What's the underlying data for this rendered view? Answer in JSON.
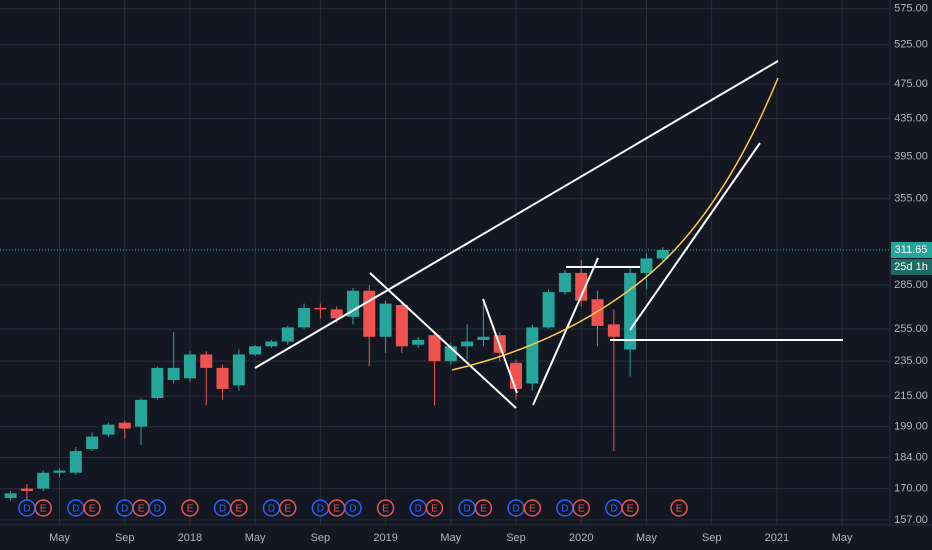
{
  "chart_data": {
    "type": "candlestick",
    "log_scale": true,
    "grid": true,
    "up_color": "#26a69a",
    "down_color": "#ef5350",
    "x": [
      "2017-02",
      "2017-03",
      "2017-04",
      "2017-05",
      "2017-06",
      "2017-07",
      "2017-08",
      "2017-09",
      "2017-10",
      "2017-11",
      "2017-12",
      "2018-01",
      "2018-02",
      "2018-03",
      "2018-04",
      "2018-05",
      "2018-06",
      "2018-07",
      "2018-08",
      "2018-09",
      "2018-10",
      "2018-11",
      "2018-12",
      "2019-01",
      "2019-02",
      "2019-03",
      "2019-04",
      "2019-05",
      "2019-06",
      "2019-07",
      "2019-08",
      "2019-09",
      "2019-10",
      "2019-11",
      "2019-12",
      "2020-01",
      "2020-02",
      "2020-03",
      "2020-04",
      "2020-05",
      "2020-06"
    ],
    "open": [
      166,
      170,
      170,
      177,
      177,
      188,
      195,
      201,
      199,
      214,
      224,
      225,
      239,
      231,
      221,
      239,
      244,
      247,
      256,
      269,
      268,
      263,
      281,
      250,
      271,
      245,
      251,
      235,
      244,
      248,
      251,
      234,
      222,
      256,
      280,
      294,
      275,
      258,
      242,
      294,
      305
    ],
    "high": [
      169,
      172,
      178,
      179,
      189,
      196,
      201,
      202,
      214,
      232,
      253,
      241,
      241,
      233,
      242,
      245,
      248,
      257,
      272,
      272,
      270,
      283,
      285,
      274,
      273,
      250,
      253,
      246,
      258,
      275,
      253,
      236,
      258,
      282,
      296,
      304,
      281,
      268,
      299,
      309,
      314
    ],
    "low": [
      165,
      165,
      169,
      175,
      176,
      187,
      194,
      193,
      190,
      213,
      222,
      223,
      210,
      213,
      218,
      238,
      243,
      245,
      255,
      262,
      259,
      258,
      232,
      240,
      240,
      243,
      210,
      233,
      236,
      244,
      235,
      213,
      218,
      255,
      278,
      270,
      244,
      187,
      226,
      282,
      303
    ],
    "close": [
      168,
      169,
      177,
      178,
      187,
      194,
      200,
      198,
      213,
      231,
      231,
      239,
      231,
      219,
      239,
      244,
      247,
      256,
      269,
      268,
      262,
      281,
      250,
      272,
      244,
      248,
      235,
      244,
      247,
      250,
      240,
      219,
      256,
      280,
      294,
      274,
      257,
      250,
      294,
      305,
      311.65
    ],
    "current_price": 311.65,
    "countdown": "25d 1h",
    "xlim": [
      "2017-01",
      "2021-08"
    ],
    "ylim": [
      155,
      588
    ],
    "xticks": [
      {
        "value": "2017-05",
        "label": "May"
      },
      {
        "value": "2017-09",
        "label": "Sep"
      },
      {
        "value": "2018-01",
        "label": "2018"
      },
      {
        "value": "2018-05",
        "label": "May"
      },
      {
        "value": "2018-09",
        "label": "Sep"
      },
      {
        "value": "2019-01",
        "label": "2019"
      },
      {
        "value": "2019-05",
        "label": "May"
      },
      {
        "value": "2019-09",
        "label": "Sep"
      },
      {
        "value": "2020-01",
        "label": "2020"
      },
      {
        "value": "2020-05",
        "label": "May"
      },
      {
        "value": "2020-09",
        "label": "Sep"
      },
      {
        "value": "2021-01",
        "label": "2021"
      },
      {
        "value": "2021-05",
        "label": "May"
      }
    ],
    "yticks": [
      {
        "value": 575,
        "label": "575.00"
      },
      {
        "value": 525,
        "label": "525.00"
      },
      {
        "value": 475,
        "label": "475.00"
      },
      {
        "value": 435,
        "label": "435.00"
      },
      {
        "value": 395,
        "label": "395.00"
      },
      {
        "value": 355,
        "label": "355.00"
      },
      {
        "value": 285,
        "label": "285.00"
      },
      {
        "value": 255,
        "label": "255.00"
      },
      {
        "value": 235,
        "label": "235.00"
      },
      {
        "value": 215,
        "label": "215.00"
      },
      {
        "value": 199,
        "label": "199.00"
      },
      {
        "value": 184,
        "label": "184.00"
      },
      {
        "value": 170,
        "label": "170.00"
      },
      {
        "value": 157,
        "label": "157.00"
      }
    ],
    "events": [
      {
        "x": "2017-03",
        "label": "D",
        "color": "#2962ff"
      },
      {
        "x": "2017-04",
        "label": "E",
        "color": "#ef5350"
      },
      {
        "x": "2017-06",
        "label": "D",
        "color": "#2962ff"
      },
      {
        "x": "2017-07",
        "label": "E",
        "color": "#ef5350"
      },
      {
        "x": "2017-09",
        "label": "D",
        "color": "#2962ff"
      },
      {
        "x": "2017-10",
        "label": "E",
        "color": "#ef5350"
      },
      {
        "x": "2017-11",
        "label": "D",
        "color": "#2962ff"
      },
      {
        "x": "2018-01",
        "label": "E",
        "color": "#ef5350"
      },
      {
        "x": "2018-03",
        "label": "D",
        "color": "#2962ff"
      },
      {
        "x": "2018-04",
        "label": "E",
        "color": "#ef5350"
      },
      {
        "x": "2018-06",
        "label": "D",
        "color": "#2962ff"
      },
      {
        "x": "2018-07",
        "label": "E",
        "color": "#ef5350"
      },
      {
        "x": "2018-09",
        "label": "D",
        "color": "#2962ff"
      },
      {
        "x": "2018-10",
        "label": "E",
        "color": "#ef5350"
      },
      {
        "x": "2018-11",
        "label": "D",
        "color": "#2962ff"
      },
      {
        "x": "2019-01",
        "label": "E",
        "color": "#ef5350"
      },
      {
        "x": "2019-03",
        "label": "D",
        "color": "#2962ff"
      },
      {
        "x": "2019-04",
        "label": "E",
        "color": "#ef5350"
      },
      {
        "x": "2019-06",
        "label": "D",
        "color": "#2962ff"
      },
      {
        "x": "2019-07",
        "label": "E",
        "color": "#ef5350"
      },
      {
        "x": "2019-09",
        "label": "D",
        "color": "#2962ff"
      },
      {
        "x": "2019-10",
        "label": "E",
        "color": "#ef5350"
      },
      {
        "x": "2019-12",
        "label": "D",
        "color": "#2962ff"
      },
      {
        "x": "2020-01",
        "label": "E",
        "color": "#ef5350"
      },
      {
        "x": "2020-03",
        "label": "D",
        "color": "#2962ff"
      },
      {
        "x": "2020-04",
        "label": "E",
        "color": "#ef5350"
      },
      {
        "x": "2020-07",
        "label": "E",
        "color": "#ef5350"
      }
    ]
  }
}
